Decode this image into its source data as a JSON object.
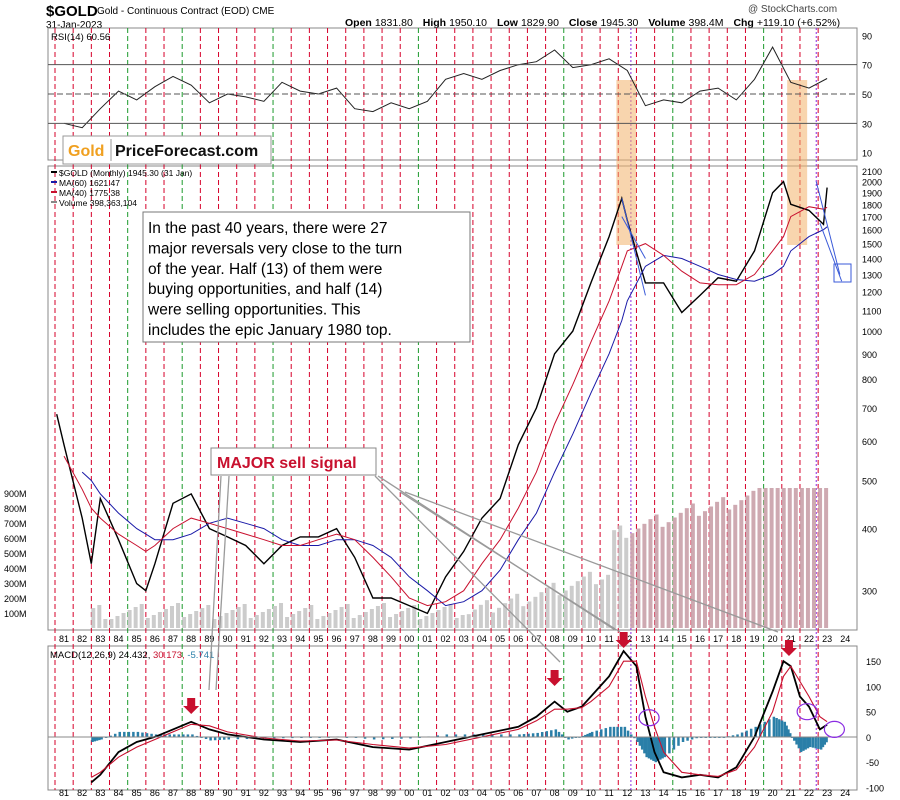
{
  "header": {
    "symbol": "$GOLD",
    "description": "Gold - Continuous Contract (EOD)",
    "exchange": "CME",
    "date": "31-Jan-2023",
    "open_label": "Open",
    "open": "1831.80",
    "high_label": "High",
    "high": "1950.10",
    "low_label": "Low",
    "low": "1829.90",
    "close_label": "Close",
    "close": "1945.30",
    "volume_label": "Volume",
    "volume": "398.4M",
    "chg_label": "Chg",
    "chg": "+119.10 (+6.52%)",
    "credit": "@ StockCharts.com"
  },
  "logo": {
    "part1": "Gold",
    "part2": "PriceForecast.com"
  },
  "chart_data": [
    {
      "type": "line",
      "panel": "RSI",
      "legend": "RSI(14) 60.56",
      "y_ticks": [
        90,
        70,
        50,
        30,
        10
      ],
      "ylim": [
        5,
        95
      ],
      "reference_lines": [
        70,
        50,
        30
      ],
      "x": [
        1981,
        1982,
        1983,
        1984,
        1985,
        1986,
        1987,
        1988,
        1989,
        1990,
        1991,
        1992,
        1993,
        1994,
        1995,
        1996,
        1997,
        1998,
        1999,
        2000,
        2001,
        2002,
        2003,
        2004,
        2005,
        2006,
        2007,
        2008,
        2009,
        2010,
        2011,
        2012,
        2013,
        2014,
        2015,
        2016,
        2017,
        2018,
        2019,
        2020,
        2021,
        2022,
        2023
      ],
      "values": [
        30,
        27,
        40,
        52,
        46,
        55,
        62,
        56,
        44,
        50,
        48,
        45,
        58,
        52,
        50,
        54,
        40,
        38,
        44,
        40,
        45,
        60,
        64,
        60,
        66,
        70,
        72,
        80,
        68,
        70,
        74,
        66,
        42,
        46,
        44,
        52,
        54,
        46,
        60,
        82,
        58,
        54,
        60.56
      ]
    },
    {
      "type": "line",
      "panel": "price",
      "legend": [
        {
          "name": "$GOLD (Monthly) 1945.30 (31 Jan)",
          "color": "#000000"
        },
        {
          "name": "MA(60) 1621.47",
          "color": "#1a1aa8"
        },
        {
          "name": "MA(40) 1775.38",
          "color": "#c8102e"
        },
        {
          "name": "Volume 398,363,104",
          "color": "#888888"
        }
      ],
      "y_ticks": [
        2100,
        2000,
        1900,
        1800,
        1700,
        1600,
        1500,
        1400,
        1300,
        1200,
        1100,
        1000,
        900,
        800,
        700,
        600,
        500,
        400,
        300
      ],
      "ylim": [
        250,
        2150
      ],
      "log_scale": true,
      "volume_ticks": [
        "900M",
        "800M",
        "700M",
        "600M",
        "500M",
        "400M",
        "300M",
        "200M",
        "100M"
      ],
      "x": [
        1980.6,
        1981,
        1982,
        1982.5,
        1983,
        1984,
        1985,
        1985.5,
        1986,
        1987,
        1988,
        1989,
        1990,
        1991,
        1992,
        1993,
        1994,
        1995,
        1996,
        1997,
        1998,
        1999,
        2000,
        2001,
        2002,
        2003,
        2004,
        2005,
        2006,
        2007,
        2008,
        2009,
        2010,
        2011,
        2011.7,
        2012,
        2013,
        2014,
        2015,
        2016,
        2017,
        2018,
        2019,
        2020,
        2020.6,
        2021,
        2022,
        2022.8,
        2023
      ],
      "series": [
        {
          "name": "$GOLD",
          "values": [
            680,
            590,
            420,
            340,
            460,
            380,
            310,
            300,
            340,
            450,
            470,
            400,
            385,
            370,
            340,
            370,
            385,
            385,
            400,
            350,
            290,
            290,
            280,
            270,
            320,
            360,
            420,
            460,
            590,
            700,
            900,
            1000,
            1250,
            1550,
            1850,
            1670,
            1250,
            1250,
            1090,
            1180,
            1280,
            1260,
            1450,
            1900,
            2000,
            1800,
            1750,
            1640,
            1945
          ]
        },
        {
          "name": "MA(60)",
          "values": [
            null,
            null,
            520,
            500,
            470,
            430,
            400,
            390,
            380,
            380,
            390,
            410,
            420,
            410,
            400,
            380,
            370,
            370,
            380,
            380,
            370,
            350,
            320,
            300,
            280,
            285,
            300,
            330,
            380,
            430,
            520,
            620,
            750,
            900,
            1050,
            1150,
            1350,
            1420,
            1400,
            1350,
            1300,
            1270,
            1260,
            1300,
            1350,
            1450,
            1550,
            1600,
            1621.47
          ]
        },
        {
          "name": "MA(40)",
          "values": [
            null,
            560,
            480,
            440,
            420,
            390,
            370,
            360,
            370,
            400,
            420,
            410,
            400,
            390,
            380,
            370,
            370,
            380,
            390,
            380,
            350,
            320,
            290,
            280,
            285,
            300,
            340,
            380,
            440,
            520,
            650,
            780,
            950,
            1150,
            1350,
            1450,
            1500,
            1420,
            1320,
            1250,
            1240,
            1240,
            1300,
            1450,
            1550,
            1700,
            1780,
            1760,
            1775.38
          ]
        }
      ]
    },
    {
      "type": "line",
      "panel": "MACD",
      "legend": {
        "label": "MACD(12,26,9)",
        "macd": "24.432",
        "signal": "30.173",
        "hist": "-5.741"
      },
      "y_ticks": [
        150,
        100,
        50,
        0,
        -50,
        -100
      ],
      "ylim": [
        -105,
        180
      ],
      "x": [
        1982.5,
        1983,
        1984,
        1985,
        1986,
        1987,
        1988,
        1989,
        1990,
        1992,
        1994,
        1996,
        1998,
        2000,
        2002,
        2004,
        2006,
        2007,
        2008,
        2008.7,
        2009.5,
        2010,
        2011,
        2011.8,
        2012.5,
        2013,
        2013.5,
        2014,
        2015,
        2016,
        2017,
        2018,
        2019,
        2020,
        2020.6,
        2021,
        2021.5,
        2022,
        2022.6,
        2023
      ],
      "series": [
        {
          "name": "MACD",
          "values": [
            -90,
            -75,
            -30,
            -10,
            0,
            15,
            30,
            15,
            5,
            -5,
            -10,
            -5,
            -20,
            -25,
            -10,
            5,
            20,
            40,
            70,
            50,
            60,
            80,
            120,
            170,
            140,
            40,
            -30,
            -70,
            -80,
            -75,
            -80,
            -60,
            0,
            90,
            150,
            140,
            80,
            60,
            15,
            24.432
          ]
        },
        {
          "name": "Signal",
          "values": [
            -80,
            -70,
            -40,
            -20,
            -5,
            10,
            25,
            22,
            10,
            -2,
            -8,
            -6,
            -15,
            -22,
            -15,
            0,
            15,
            32,
            55,
            55,
            58,
            70,
            100,
            150,
            150,
            80,
            20,
            -30,
            -70,
            -75,
            -78,
            -65,
            -20,
            50,
            120,
            140,
            110,
            80,
            40,
            30.173
          ]
        }
      ]
    }
  ],
  "x_axis_labels": [
    "81",
    "82",
    "83",
    "84",
    "85",
    "86",
    "87",
    "88",
    "89",
    "90",
    "91",
    "92",
    "93",
    "94",
    "95",
    "96",
    "97",
    "98",
    "99",
    "00",
    "01",
    "02",
    "03",
    "04",
    "05",
    "06",
    "07",
    "08",
    "09",
    "10",
    "11",
    "12",
    "13",
    "14",
    "15",
    "16",
    "17",
    "18",
    "19",
    "20",
    "21",
    "22",
    "23",
    "24"
  ],
  "annotations": {
    "text_box": "In the past 40 years, there were 27 major reversals very close to the turn of the year. Half (13) of them were buying opportunities, and half (14) were selling opportunities. This includes the epic January 1980 top.",
    "sell_signal": "MAJOR sell signal"
  },
  "colors": {
    "price": "#000000",
    "ma60": "#1a1aa8",
    "ma40": "#c8102e",
    "red_vline": "#d6002a",
    "green_vline": "#1c9a2c",
    "purple_vline": "#8a2be2",
    "highlight": "#f3b36b",
    "logo_gold": "#f0a020",
    "sell_text": "#c8102e",
    "hist": "#2a7fa8",
    "arrow": "#c8102e"
  }
}
